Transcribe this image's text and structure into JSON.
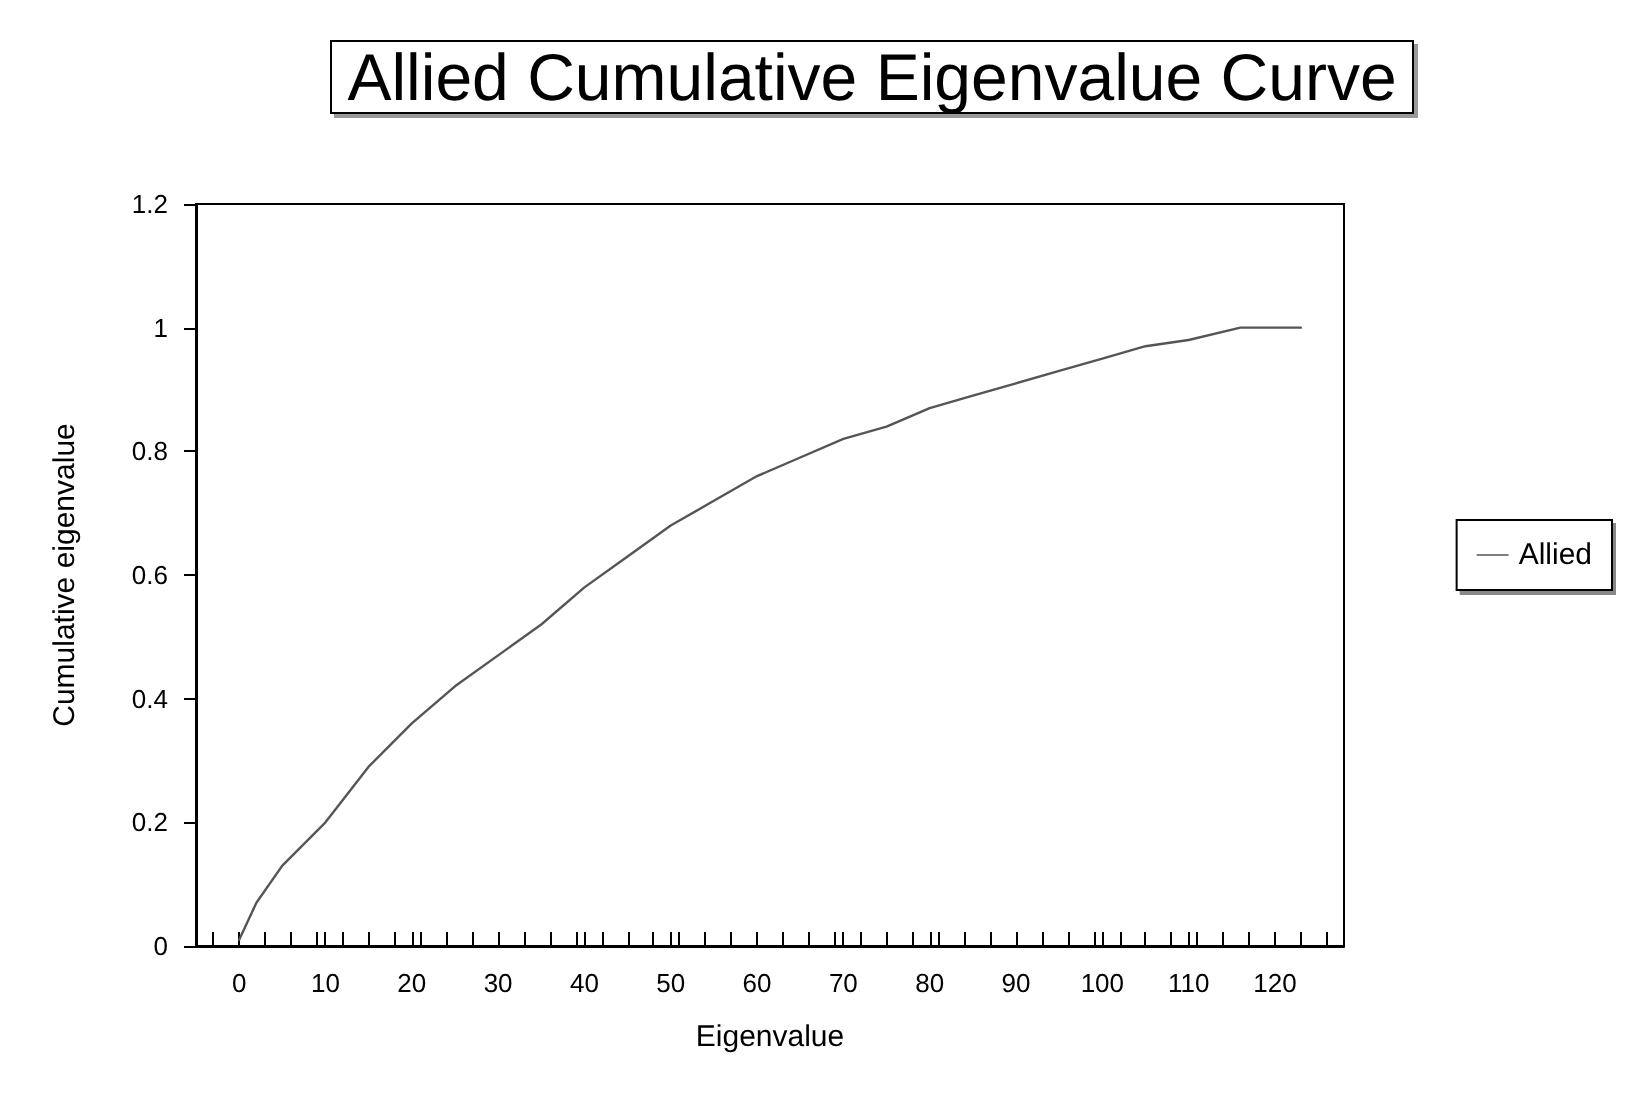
{
  "chart_data": {
    "type": "line",
    "title": "Allied Cumulative Eigenvalue Curve",
    "xlabel": "Eigenvalue",
    "ylabel": "Cumulative eigenvalue",
    "x": [
      0,
      2,
      5,
      10,
      15,
      20,
      25,
      30,
      35,
      40,
      45,
      50,
      55,
      60,
      65,
      70,
      75,
      80,
      85,
      90,
      95,
      100,
      105,
      110,
      116,
      123
    ],
    "series": [
      {
        "name": "Allied",
        "color": "#555555",
        "values": [
          0.01,
          0.07,
          0.13,
          0.2,
          0.29,
          0.36,
          0.42,
          0.47,
          0.52,
          0.58,
          0.63,
          0.68,
          0.72,
          0.76,
          0.79,
          0.82,
          0.84,
          0.87,
          0.89,
          0.91,
          0.93,
          0.95,
          0.97,
          0.98,
          1.0,
          1.0
        ]
      }
    ],
    "xlim": [
      -5,
      128
    ],
    "xticks": [
      0,
      10,
      20,
      30,
      40,
      50,
      60,
      70,
      80,
      90,
      100,
      110,
      120
    ],
    "ylim": [
      0,
      1.2
    ],
    "yticks": [
      0,
      0.2,
      0.4,
      0.6,
      0.8,
      1,
      1.2
    ],
    "grid": false,
    "legend": "right",
    "marker": "none",
    "line_style": "solid"
  }
}
